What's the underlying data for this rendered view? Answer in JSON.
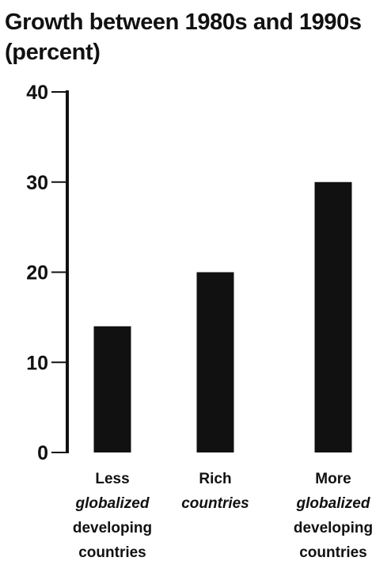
{
  "chart_data": {
    "type": "bar",
    "title": [
      "Growth between 1980s and 1990s",
      "(percent)"
    ],
    "xlabel": "",
    "ylabel": "",
    "ylim": [
      0,
      40
    ],
    "yticks": [
      0,
      10,
      20,
      30,
      40
    ],
    "ytick_labels": [
      "0",
      "10",
      "20",
      "30",
      "40"
    ],
    "grid": false,
    "categories": [
      "Less globalized developing countries",
      "Rich countries",
      "More globalized developing countries"
    ],
    "category_label_lines": [
      [
        {
          "text": "Less",
          "italic": false
        },
        {
          "text": "globalized",
          "italic": true
        },
        {
          "text": "developing",
          "italic": false
        },
        {
          "text": "countries",
          "italic": false
        }
      ],
      [
        {
          "text": "Rich",
          "italic": false
        },
        {
          "text": "countries",
          "italic": true
        }
      ],
      [
        {
          "text": "More",
          "italic": false
        },
        {
          "text": "globalized",
          "italic": true
        },
        {
          "text": "developing",
          "italic": false
        },
        {
          "text": "countries",
          "italic": false
        }
      ]
    ],
    "values": [
      14,
      20,
      30
    ],
    "colors": {
      "bar": "#111111",
      "axis": "#111111",
      "text": "#111111"
    }
  }
}
